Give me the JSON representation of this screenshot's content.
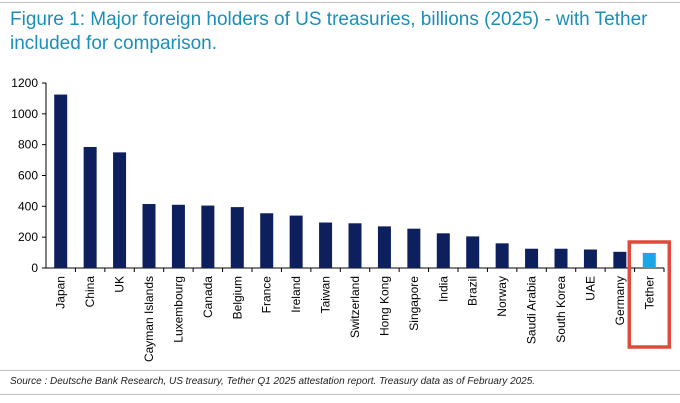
{
  "title": "Figure 1: Major foreign holders of US treasuries, billions (2025) - with Tether included for comparison.",
  "source": "Source : Deutsche Bank Research, US treasury, Tether Q1 2025 attestation report. Treasury data as of February 2025.",
  "colors": {
    "title": "#1a8fb8",
    "bar": "#0d1f5c",
    "highlight_bar": "#1aa7e8",
    "highlight_box": "#e04a3c"
  },
  "chart_data": {
    "type": "bar",
    "title": "Figure 1: Major foreign holders of US treasuries, billions (2025) - with Tether included for comparison.",
    "xlabel": "",
    "ylabel": "",
    "ylim": [
      0,
      1200
    ],
    "yticks": [
      0,
      200,
      400,
      600,
      800,
      1000,
      1200
    ],
    "grid": false,
    "categories": [
      "Japan",
      "China",
      "UK",
      "Cayman Islands",
      "Luxembourg",
      "Canada",
      "Belgium",
      "France",
      "Ireland",
      "Taiwan",
      "Switzerland",
      "Hong Kong",
      "Singapore",
      "India",
      "Brazil",
      "Norway",
      "Saudi Arabia",
      "South Korea",
      "UAE",
      "Germany",
      "Tether"
    ],
    "values": [
      1125,
      785,
      750,
      415,
      410,
      405,
      395,
      355,
      340,
      295,
      290,
      270,
      255,
      225,
      205,
      160,
      125,
      125,
      120,
      105,
      98
    ],
    "highlighted": "Tether"
  }
}
